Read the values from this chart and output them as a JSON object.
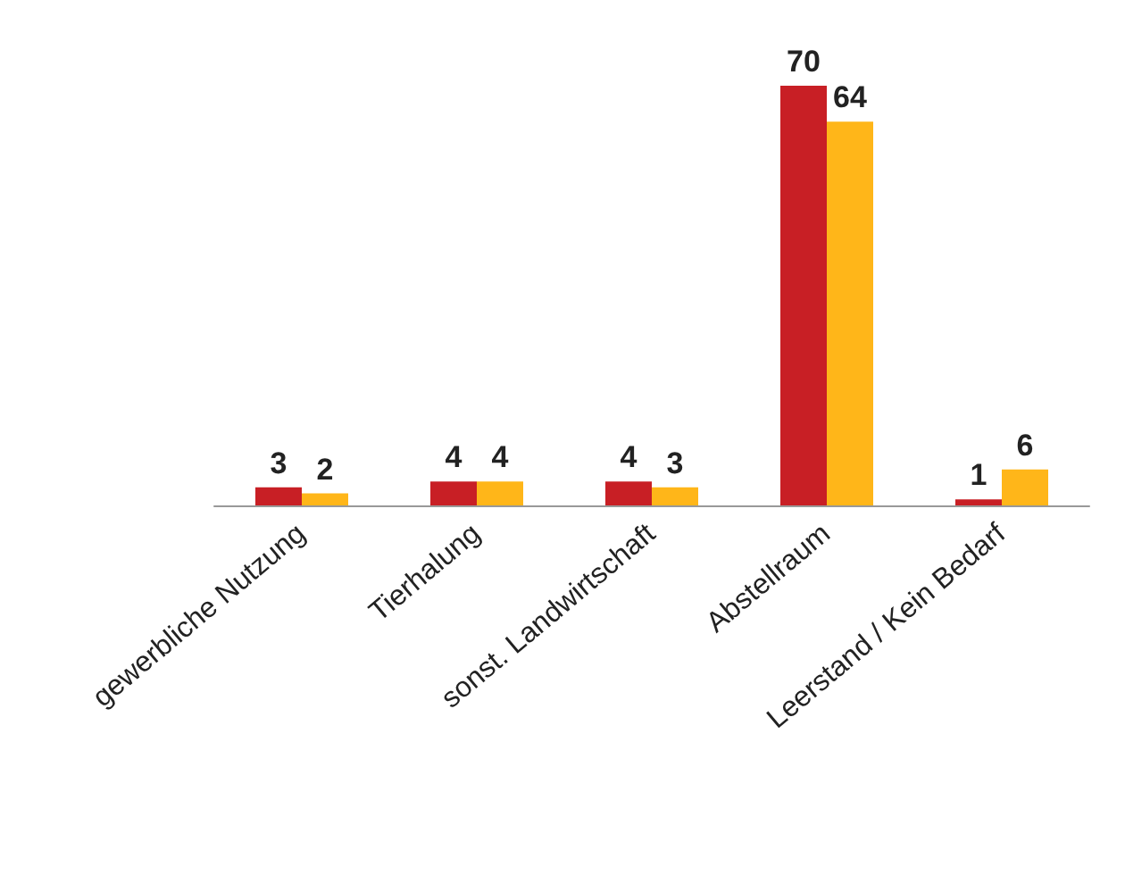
{
  "chart_data": {
    "type": "bar",
    "categories": [
      "gewerbliche Nutzung",
      "Tierhalung",
      "sonst. Landwirtschaft",
      "Abstellraum",
      "Leerstand / Kein Bedarf"
    ],
    "series": [
      {
        "color": "#c81f25",
        "values": [
          3,
          4,
          4,
          70,
          1
        ]
      },
      {
        "color": "#ffb619",
        "values": [
          2,
          4,
          3,
          64,
          6
        ]
      }
    ],
    "data_labels": true
  }
}
